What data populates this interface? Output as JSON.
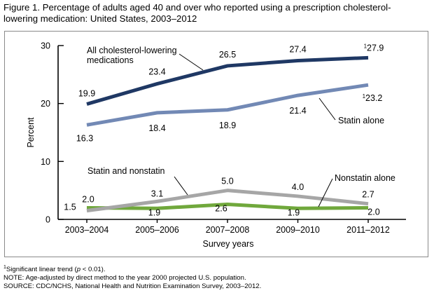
{
  "figure": {
    "title": "Figure 1. Percentage of adults aged 40 and over who reported using a prescription cholesterol-lowering medication: United States, 2003–2012"
  },
  "footnotes": {
    "trend_mark": "1",
    "trend_text": "Significant linear trend (",
    "trend_p": "p",
    "trend_rest": " < 0.01).",
    "note": "NOTE: Age-adjusted by direct method to the year 2000 projected U.S. population.",
    "source": "SOURCE: CDC/NCHS, National Health and Nutrition Examination Survey, 2003–2012."
  },
  "chart_data": {
    "type": "line",
    "title": "",
    "xlabel": "Survey years",
    "ylabel": "Percent",
    "ylim": [
      0,
      30
    ],
    "yticks": [
      0,
      10,
      20,
      30
    ],
    "grid": false,
    "legend": "none",
    "categories": [
      "2003–2004",
      "2005–2006",
      "2007–2008",
      "2009–2010",
      "2011–2012"
    ],
    "series": [
      {
        "name": "All cholesterol-lowering medications",
        "color": "#1f3864",
        "values": [
          19.9,
          23.4,
          26.5,
          27.4,
          27.9
        ],
        "labels": [
          "19.9",
          "23.4",
          "26.5",
          "27.4",
          "27.9"
        ],
        "trend_marker": "1"
      },
      {
        "name": "Statin alone",
        "color": "#7289b5",
        "values": [
          16.3,
          18.4,
          18.9,
          21.4,
          23.2
        ],
        "labels": [
          "16.3",
          "18.4",
          "18.9",
          "21.4",
          "23.2"
        ],
        "trend_marker": "1"
      },
      {
        "name": "Statin and nonstatin",
        "color": "#a6a6a6",
        "values": [
          1.5,
          3.1,
          5.0,
          4.0,
          2.7
        ],
        "labels": [
          "1.5",
          "3.1",
          "5.0",
          "4.0",
          "2.7"
        ]
      },
      {
        "name": "Nonstatin alone",
        "color": "#70a83c",
        "values": [
          2.0,
          1.9,
          2.6,
          1.9,
          2.0
        ],
        "labels": [
          "2.0",
          "1.9",
          "2.6",
          "1.9",
          "2.0"
        ]
      }
    ]
  }
}
